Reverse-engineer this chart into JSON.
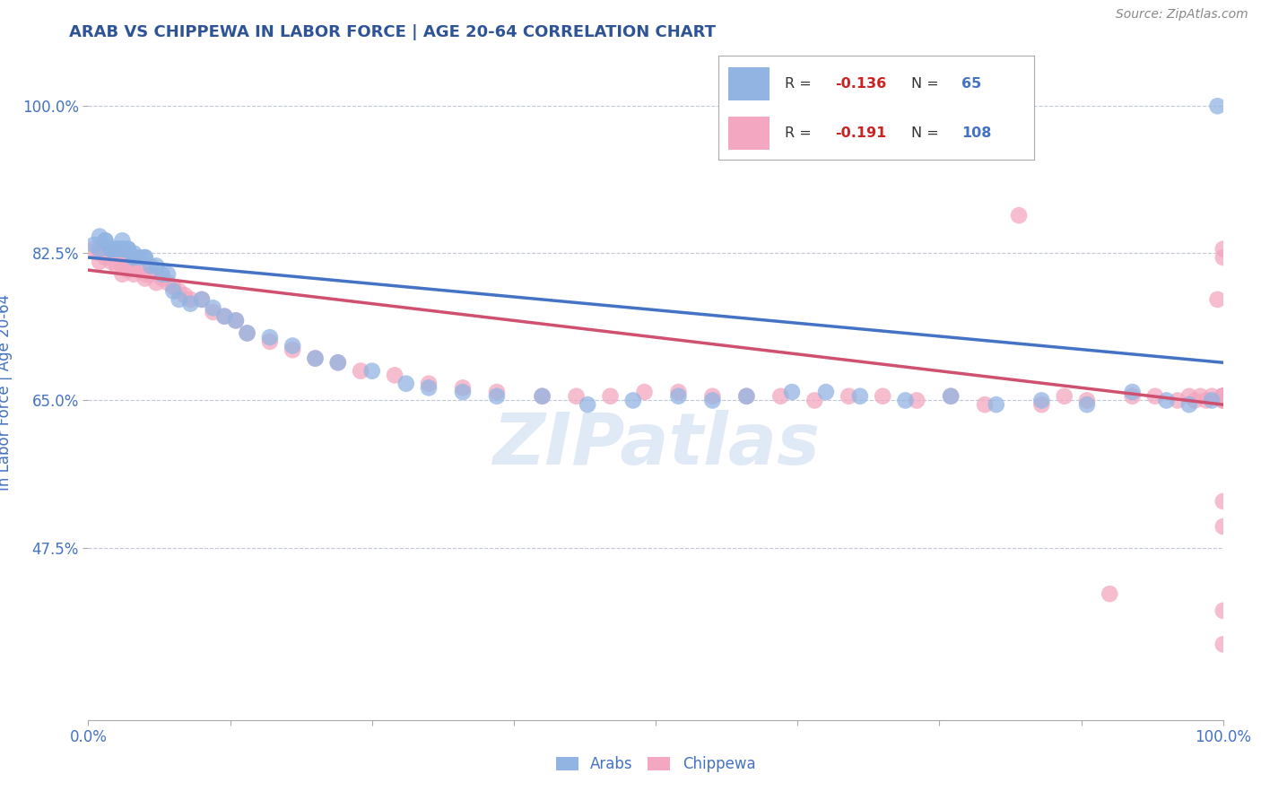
{
  "title": "ARAB VS CHIPPEWA IN LABOR FORCE | AGE 20-64 CORRELATION CHART",
  "source_text": "Source: ZipAtlas.com",
  "ylabel": "In Labor Force | Age 20-64",
  "xlim": [
    0.0,
    1.0
  ],
  "ylim": [
    0.27,
    1.05
  ],
  "yticks": [
    0.475,
    0.65,
    0.825,
    1.0
  ],
  "ytick_labels": [
    "47.5%",
    "65.0%",
    "82.5%",
    "100.0%"
  ],
  "xticks": [
    0.0,
    0.125,
    0.25,
    0.375,
    0.5,
    0.625,
    0.75,
    0.875,
    1.0
  ],
  "xtick_labels_show": [
    "0.0%",
    "",
    "",
    "",
    "",
    "",
    "",
    "",
    "100.0%"
  ],
  "legend_R_arab": "-0.136",
  "legend_N_arab": "65",
  "legend_R_chip": "-0.191",
  "legend_N_chip": "108",
  "arab_color": "#92B4E3",
  "chip_color": "#F4A7C0",
  "arab_line_color": "#4472C4",
  "chip_line_color": "#D05070",
  "watermark": "ZIPatlas",
  "watermark_color": "#C8D8F0",
  "background_color": "#ffffff",
  "title_color": "#2F5496",
  "axis_label_color": "#4472C4",
  "grid_color": "#C0C8D8",
  "arab_x": [
    0.005,
    0.01,
    0.01,
    0.015,
    0.015,
    0.02,
    0.02,
    0.02,
    0.02,
    0.025,
    0.025,
    0.025,
    0.03,
    0.03,
    0.03,
    0.03,
    0.03,
    0.035,
    0.035,
    0.04,
    0.04,
    0.04,
    0.045,
    0.05,
    0.05,
    0.055,
    0.06,
    0.065,
    0.07,
    0.075,
    0.08,
    0.09,
    0.1,
    0.11,
    0.12,
    0.13,
    0.14,
    0.16,
    0.18,
    0.2,
    0.22,
    0.25,
    0.28,
    0.3,
    0.33,
    0.36,
    0.4,
    0.44,
    0.48,
    0.52,
    0.55,
    0.58,
    0.62,
    0.65,
    0.68,
    0.72,
    0.76,
    0.8,
    0.84,
    0.88,
    0.92,
    0.95,
    0.97,
    0.99,
    0.995
  ],
  "arab_y": [
    0.835,
    0.83,
    0.845,
    0.84,
    0.84,
    0.83,
    0.83,
    0.83,
    0.83,
    0.83,
    0.83,
    0.83,
    0.84,
    0.83,
    0.83,
    0.83,
    0.83,
    0.83,
    0.83,
    0.825,
    0.82,
    0.82,
    0.82,
    0.82,
    0.82,
    0.81,
    0.81,
    0.8,
    0.8,
    0.78,
    0.77,
    0.765,
    0.77,
    0.76,
    0.75,
    0.745,
    0.73,
    0.725,
    0.715,
    0.7,
    0.695,
    0.685,
    0.67,
    0.665,
    0.66,
    0.655,
    0.655,
    0.645,
    0.65,
    0.655,
    0.65,
    0.655,
    0.66,
    0.66,
    0.655,
    0.65,
    0.655,
    0.645,
    0.65,
    0.645,
    0.66,
    0.65,
    0.645,
    0.65,
    1.0
  ],
  "chip_x": [
    0.005,
    0.01,
    0.01,
    0.015,
    0.015,
    0.02,
    0.02,
    0.025,
    0.025,
    0.03,
    0.03,
    0.03,
    0.035,
    0.035,
    0.04,
    0.04,
    0.045,
    0.05,
    0.05,
    0.055,
    0.06,
    0.065,
    0.07,
    0.075,
    0.08,
    0.085,
    0.09,
    0.1,
    0.11,
    0.12,
    0.13,
    0.14,
    0.16,
    0.18,
    0.2,
    0.22,
    0.24,
    0.27,
    0.3,
    0.33,
    0.36,
    0.4,
    0.43,
    0.46,
    0.49,
    0.52,
    0.55,
    0.58,
    0.61,
    0.64,
    0.67,
    0.7,
    0.73,
    0.76,
    0.79,
    0.82,
    0.84,
    0.86,
    0.88,
    0.9,
    0.92,
    0.94,
    0.96,
    0.97,
    0.975,
    0.98,
    0.985,
    0.99,
    0.995,
    1.0,
    1.0,
    1.0,
    1.0,
    1.0,
    1.0,
    1.0,
    1.0,
    1.0,
    1.0,
    1.0,
    1.0,
    1.0,
    1.0,
    1.0,
    1.0,
    1.0,
    1.0,
    1.0,
    1.0,
    1.0,
    1.0,
    1.0,
    1.0,
    1.0,
    1.0,
    1.0,
    1.0,
    1.0,
    1.0,
    1.0,
    1.0,
    1.0,
    1.0,
    1.0,
    1.0,
    1.0,
    1.0,
    1.0
  ],
  "chip_y": [
    0.83,
    0.825,
    0.815,
    0.83,
    0.82,
    0.825,
    0.815,
    0.825,
    0.81,
    0.82,
    0.81,
    0.8,
    0.815,
    0.805,
    0.81,
    0.8,
    0.805,
    0.8,
    0.795,
    0.8,
    0.79,
    0.795,
    0.79,
    0.785,
    0.78,
    0.775,
    0.77,
    0.77,
    0.755,
    0.75,
    0.745,
    0.73,
    0.72,
    0.71,
    0.7,
    0.695,
    0.685,
    0.68,
    0.67,
    0.665,
    0.66,
    0.655,
    0.655,
    0.655,
    0.66,
    0.66,
    0.655,
    0.655,
    0.655,
    0.65,
    0.655,
    0.655,
    0.65,
    0.655,
    0.645,
    0.87,
    0.645,
    0.655,
    0.65,
    0.42,
    0.655,
    0.655,
    0.65,
    0.655,
    0.65,
    0.655,
    0.65,
    0.655,
    0.77,
    0.82,
    0.83,
    0.655,
    0.65,
    0.65,
    0.655,
    0.5,
    0.53,
    0.655,
    0.655,
    0.655,
    0.655,
    0.655,
    0.655,
    0.65,
    0.655,
    0.655,
    0.655,
    0.655,
    0.655,
    0.655,
    0.655,
    0.36,
    0.4,
    0.655,
    0.655,
    0.655,
    0.655,
    0.655,
    0.655,
    0.655,
    0.655,
    0.655,
    0.655,
    0.655,
    0.655,
    0.655,
    0.655,
    0.655
  ],
  "arab_trend_start_y": 0.82,
  "arab_trend_end_y": 0.695,
  "chip_trend_start_y": 0.805,
  "chip_trend_end_y": 0.645
}
